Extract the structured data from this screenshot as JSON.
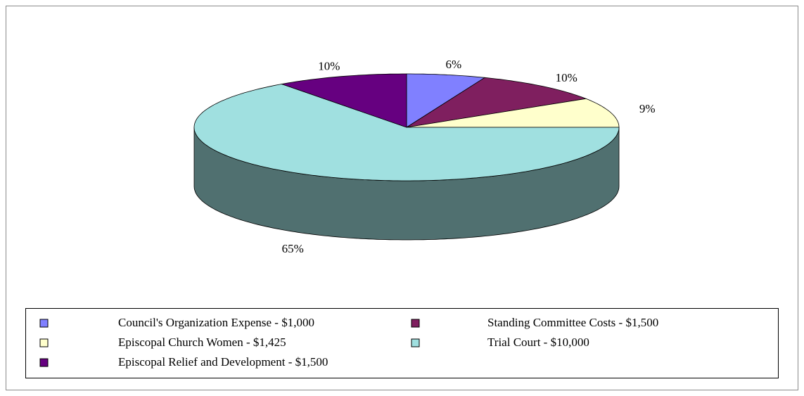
{
  "chart_data": {
    "type": "pie",
    "categories": [
      "Council's Organization Expense - $1,000",
      "Standing Committee Costs - $1,500",
      "Episcopal Church Women - $1,425",
      "Trial Court - $10,000",
      "Episcopal Relief and Development - $1,500"
    ],
    "values": [
      6,
      10,
      9,
      65,
      10
    ],
    "value_labels": [
      "6%",
      "10%",
      "9%",
      "65%",
      "10%"
    ],
    "colors": [
      "#8080ff",
      "#7f1f5f",
      "#ffffcc",
      "#a0e0e0",
      "#660080"
    ],
    "legend": "bottom"
  }
}
